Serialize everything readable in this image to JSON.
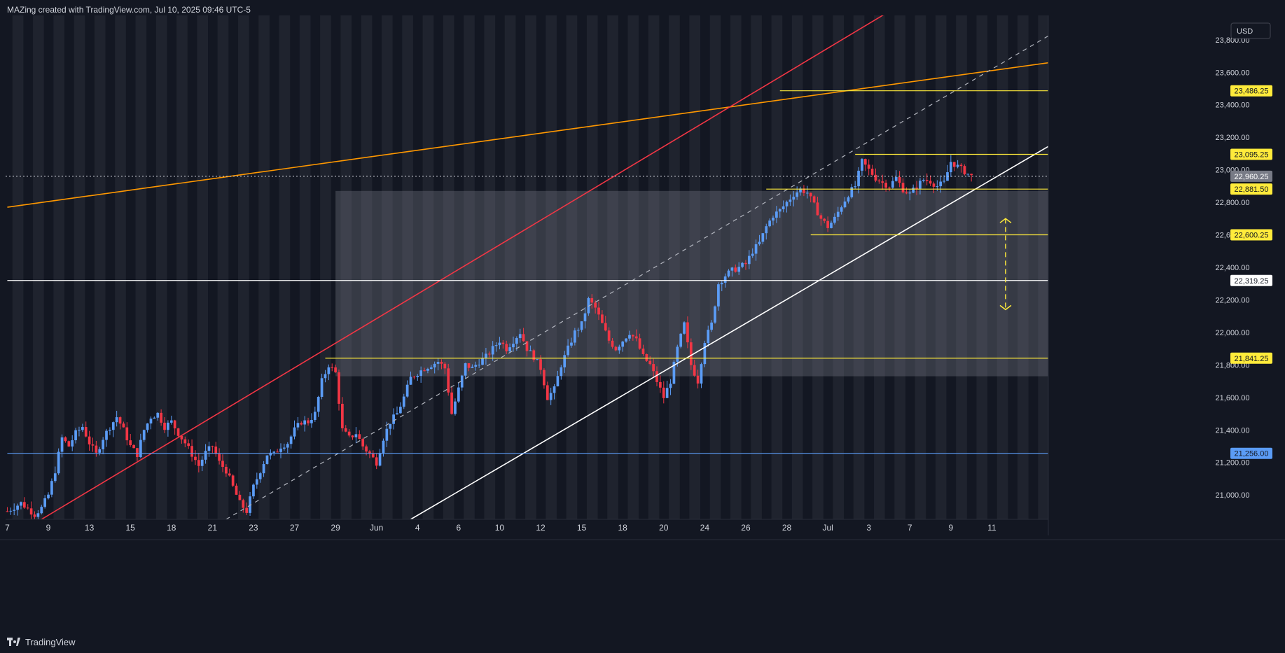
{
  "header": {
    "caption": "MAZing created with TradingView.com, Jul 10, 2025 09:46 UTC-5"
  },
  "footer": {
    "brand": "TradingView"
  },
  "currency": "USD",
  "colors": {
    "background": "#131722",
    "up": "#5b9cf6",
    "down": "#f23645",
    "level_yellow": "#ffeb3b",
    "orange_trend": "#ff9800",
    "red_trend": "#f23645",
    "white_trend": "#ffffff",
    "blue_level": "#2962ff"
  },
  "chart_data": {
    "type": "candlestick",
    "y_axis": {
      "range": [
        20850,
        23950
      ],
      "ticks": [
        21000,
        21200,
        21400,
        21600,
        21800,
        22000,
        22200,
        22400,
        22600,
        22800,
        23000,
        23200,
        23400,
        23600,
        23800
      ],
      "tick_labels": [
        "21,000.00",
        "21,200.00",
        "21,400.00",
        "21,600.00",
        "21,800.00",
        "22,000.00",
        "22,200.00",
        "22,400.00",
        "22,600.00",
        "22,800.00",
        "23,000.00",
        "23,200.00",
        "23,400.00",
        "23,600.00",
        "23,800.00"
      ]
    },
    "x_axis": {
      "ticks": [
        {
          "label": "7",
          "bar": 0
        },
        {
          "label": "9",
          "bar": 12
        },
        {
          "label": "13",
          "bar": 24
        },
        {
          "label": "15",
          "bar": 36
        },
        {
          "label": "18",
          "bar": 48
        },
        {
          "label": "21",
          "bar": 60
        },
        {
          "label": "23",
          "bar": 72
        },
        {
          "label": "27",
          "bar": 84
        },
        {
          "label": "29",
          "bar": 96
        },
        {
          "label": "Jun",
          "bar": 108
        },
        {
          "label": "4",
          "bar": 120
        },
        {
          "label": "6",
          "bar": 132
        },
        {
          "label": "10",
          "bar": 144
        },
        {
          "label": "12",
          "bar": 156
        },
        {
          "label": "15",
          "bar": 168
        },
        {
          "label": "18",
          "bar": 180
        },
        {
          "label": "20",
          "bar": 192
        },
        {
          "label": "24",
          "bar": 204
        },
        {
          "label": "26",
          "bar": 216
        },
        {
          "label": "28",
          "bar": 228
        },
        {
          "label": "Jul",
          "bar": 240
        },
        {
          "label": "3",
          "bar": 252
        },
        {
          "label": "7",
          "bar": 264
        },
        {
          "label": "9",
          "bar": 276
        },
        {
          "label": "11",
          "bar": 288
        }
      ]
    },
    "price_labels": [
      {
        "value": 23486.25,
        "text": "23,486.25",
        "style": "yellow"
      },
      {
        "value": 23095.25,
        "text": "23,095.25",
        "style": "yellow"
      },
      {
        "value": 22960.25,
        "text": "22,960.25",
        "style": "gray"
      },
      {
        "value": 22881.5,
        "text": "22,881.50",
        "style": "yellow"
      },
      {
        "value": 22600.25,
        "text": "22,600.25",
        "style": "yellow"
      },
      {
        "value": 22319.25,
        "text": "22,319.25",
        "style": "white"
      },
      {
        "value": 21841.25,
        "text": "21,841.25",
        "style": "yellow"
      },
      {
        "value": 21256.0,
        "text": "21,256.00",
        "style": "blue"
      }
    ],
    "levels": [
      {
        "value": 23486.25,
        "color": "#ffeb3b",
        "from_bar": 226
      },
      {
        "value": 23095.25,
        "color": "#ffeb3b",
        "from_bar": 248
      },
      {
        "value": 22881.5,
        "color": "#ffeb3b",
        "from_bar": 222
      },
      {
        "value": 22600.25,
        "color": "#ffeb3b",
        "from_bar": 235
      },
      {
        "value": 21841.25,
        "color": "#ffeb3b",
        "from_bar": 93
      },
      {
        "value": 22319.25,
        "color": "#ffffff",
        "from_bar": 0
      },
      {
        "value": 21256.0,
        "color": "#5b9cf6",
        "from_bar": 0
      }
    ],
    "current_price": 22960.25,
    "zone": {
      "from_bar": 96,
      "to_bar": 305,
      "high": 22870,
      "low": 21730
    },
    "trendlines": [
      {
        "color": "#ff9800",
        "dashed": false,
        "p1": {
          "bar": 0,
          "price": 22770
        },
        "p2": {
          "bar": 305,
          "price": 23660
        }
      },
      {
        "color": "#f23645",
        "dashed": false,
        "p1": {
          "bar": 10,
          "price": 20850
        },
        "p2": {
          "bar": 260,
          "price": 24000
        }
      },
      {
        "color": "#ffffff",
        "dashed": false,
        "p1": {
          "bar": 118,
          "price": 20850
        },
        "p2": {
          "bar": 305,
          "price": 23150
        }
      },
      {
        "color": "#b2b5be",
        "dashed": true,
        "p1": {
          "bar": 64,
          "price": 20850
        },
        "p2": {
          "bar": 305,
          "price": 23830
        }
      }
    ],
    "target_arrow": {
      "bar": 292,
      "from": 22700,
      "to": 22140
    },
    "candles_anchors": [
      [
        0,
        20900
      ],
      [
        4,
        20950
      ],
      [
        8,
        20880
      ],
      [
        10,
        20920
      ],
      [
        12,
        21000
      ],
      [
        14,
        21150
      ],
      [
        16,
        21350
      ],
      [
        18,
        21300
      ],
      [
        20,
        21380
      ],
      [
        22,
        21420
      ],
      [
        24,
        21320
      ],
      [
        26,
        21250
      ],
      [
        28,
        21350
      ],
      [
        30,
        21420
      ],
      [
        32,
        21480
      ],
      [
        34,
        21400
      ],
      [
        36,
        21300
      ],
      [
        38,
        21250
      ],
      [
        40,
        21400
      ],
      [
        42,
        21480
      ],
      [
        44,
        21500
      ],
      [
        46,
        21420
      ],
      [
        48,
        21450
      ],
      [
        50,
        21380
      ],
      [
        52,
        21320
      ],
      [
        54,
        21250
      ],
      [
        56,
        21180
      ],
      [
        58,
        21260
      ],
      [
        60,
        21300
      ],
      [
        62,
        21200
      ],
      [
        64,
        21150
      ],
      [
        66,
        21050
      ],
      [
        68,
        20950
      ],
      [
        70,
        20900
      ],
      [
        72,
        21050
      ],
      [
        74,
        21150
      ],
      [
        76,
        21250
      ],
      [
        78,
        21250
      ],
      [
        80,
        21300
      ],
      [
        82,
        21320
      ],
      [
        84,
        21400
      ],
      [
        86,
        21450
      ],
      [
        88,
        21450
      ],
      [
        90,
        21500
      ],
      [
        92,
        21700
      ],
      [
        94,
        21800
      ],
      [
        96,
        21750
      ],
      [
        98,
        21400
      ],
      [
        100,
        21350
      ],
      [
        102,
        21380
      ],
      [
        104,
        21300
      ],
      [
        106,
        21250
      ],
      [
        108,
        21200
      ],
      [
        110,
        21350
      ],
      [
        112,
        21450
      ],
      [
        114,
        21500
      ],
      [
        116,
        21600
      ],
      [
        118,
        21720
      ],
      [
        120,
        21750
      ],
      [
        122,
        21780
      ],
      [
        124,
        21800
      ],
      [
        126,
        21820
      ],
      [
        128,
        21780
      ],
      [
        130,
        21500
      ],
      [
        132,
        21650
      ],
      [
        134,
        21800
      ],
      [
        136,
        21780
      ],
      [
        138,
        21820
      ],
      [
        140,
        21850
      ],
      [
        142,
        21900
      ],
      [
        144,
        21950
      ],
      [
        146,
        21900
      ],
      [
        148,
        21950
      ],
      [
        150,
        22000
      ],
      [
        152,
        21900
      ],
      [
        154,
        21850
      ],
      [
        156,
        21780
      ],
      [
        158,
        21600
      ],
      [
        160,
        21650
      ],
      [
        162,
        21800
      ],
      [
        164,
        21900
      ],
      [
        166,
        22000
      ],
      [
        168,
        22050
      ],
      [
        170,
        22200
      ],
      [
        172,
        22150
      ],
      [
        174,
        22050
      ],
      [
        176,
        21950
      ],
      [
        178,
        21900
      ],
      [
        180,
        21950
      ],
      [
        182,
        22000
      ],
      [
        184,
        21950
      ],
      [
        186,
        21850
      ],
      [
        188,
        21800
      ],
      [
        190,
        21700
      ],
      [
        192,
        21600
      ],
      [
        194,
        21700
      ],
      [
        196,
        21900
      ],
      [
        198,
        22050
      ],
      [
        200,
        21800
      ],
      [
        202,
        21700
      ],
      [
        204,
        21950
      ],
      [
        206,
        22050
      ],
      [
        208,
        22300
      ],
      [
        210,
        22350
      ],
      [
        212,
        22380
      ],
      [
        214,
        22400
      ],
      [
        216,
        22420
      ],
      [
        218,
        22500
      ],
      [
        220,
        22550
      ],
      [
        222,
        22650
      ],
      [
        224,
        22720
      ],
      [
        226,
        22750
      ],
      [
        228,
        22800
      ],
      [
        230,
        22850
      ],
      [
        232,
        22880
      ],
      [
        234,
        22860
      ],
      [
        236,
        22780
      ],
      [
        238,
        22700
      ],
      [
        240,
        22650
      ],
      [
        242,
        22700
      ],
      [
        244,
        22780
      ],
      [
        246,
        22850
      ],
      [
        248,
        22900
      ],
      [
        250,
        23050
      ],
      [
        252,
        23000
      ],
      [
        254,
        22950
      ],
      [
        256,
        22920
      ],
      [
        258,
        22900
      ],
      [
        260,
        22950
      ],
      [
        262,
        22880
      ],
      [
        264,
        22850
      ],
      [
        266,
        22900
      ],
      [
        268,
        22940
      ],
      [
        270,
        22930
      ],
      [
        272,
        22900
      ],
      [
        274,
        22920
      ],
      [
        276,
        23050
      ],
      [
        278,
        23020
      ],
      [
        280,
        22990
      ],
      [
        282,
        22960
      ]
    ]
  }
}
